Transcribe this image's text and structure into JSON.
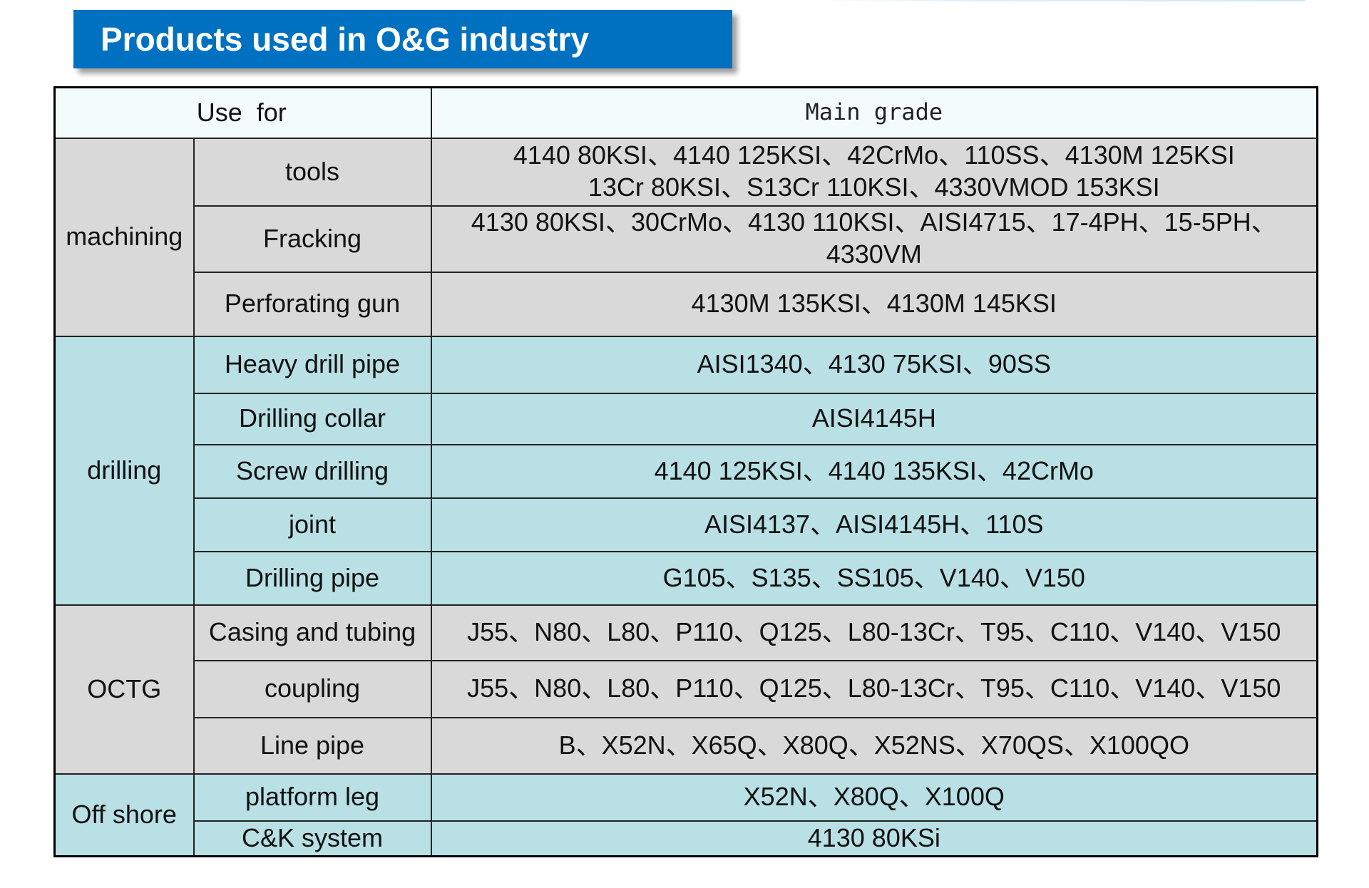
{
  "title": "Products used in O&G industry",
  "table": {
    "headers": {
      "use_for": "Use  for",
      "main_grade": "Main grade"
    },
    "groups": [
      {
        "category": "machining",
        "rows": [
          {
            "use": "tools",
            "grade_line1": "4140 80KSI、4140 125KSI、42CrMo、110SS、4130M 125KSI",
            "grade_line2": "13Cr 80KSI、S13Cr 110KSI、4330VMOD 153KSI"
          },
          {
            "use": "Fracking",
            "grade_line1": "4130 80KSI、30CrMo、4130 110KSI、AISI4715、17-4PH、15-5PH、",
            "grade_line2": "4330VM"
          },
          {
            "use": "Perforating gun",
            "grade": "4130M 135KSI、4130M 145KSI"
          }
        ]
      },
      {
        "category": "drilling",
        "rows": [
          {
            "use": "Heavy drill pipe",
            "grade": "AISI1340、4130 75KSI、90SS"
          },
          {
            "use": "Drilling collar",
            "grade": "AISI4145H"
          },
          {
            "use": "Screw drilling",
            "grade": "4140 125KSI、4140 135KSI、42CrMo"
          },
          {
            "use": "joint",
            "grade": "AISI4137、AISI4145H、110S"
          },
          {
            "use": "Drilling pipe",
            "grade": "G105、S135、SS105、V140、V150"
          }
        ]
      },
      {
        "category": "OCTG",
        "rows": [
          {
            "use": "Casing and tubing",
            "grade": "J55、N80、L80、P110、Q125、L80-13Cr、T95、C110、V140、V150"
          },
          {
            "use": "coupling",
            "grade": "J55、N80、L80、P110、Q125、L80-13Cr、T95、C110、V140、V150"
          },
          {
            "use": "Line pipe",
            "grade": "B、X52N、X65Q、X80Q、X52NS、X70QS、X100QO"
          }
        ]
      },
      {
        "category": "Off shore",
        "rows": [
          {
            "use": "platform leg",
            "grade": "X52N、X80Q、X100Q"
          },
          {
            "use": "C&K system",
            "grade": "4130 80KSi"
          }
        ]
      }
    ]
  },
  "colors": {
    "banner": "#0070c0",
    "banner_text": "#ffffff",
    "row_gray": "#d9d9d9",
    "row_cyan": "#b9e0e4",
    "header_bg": "#f4fbfd"
  }
}
